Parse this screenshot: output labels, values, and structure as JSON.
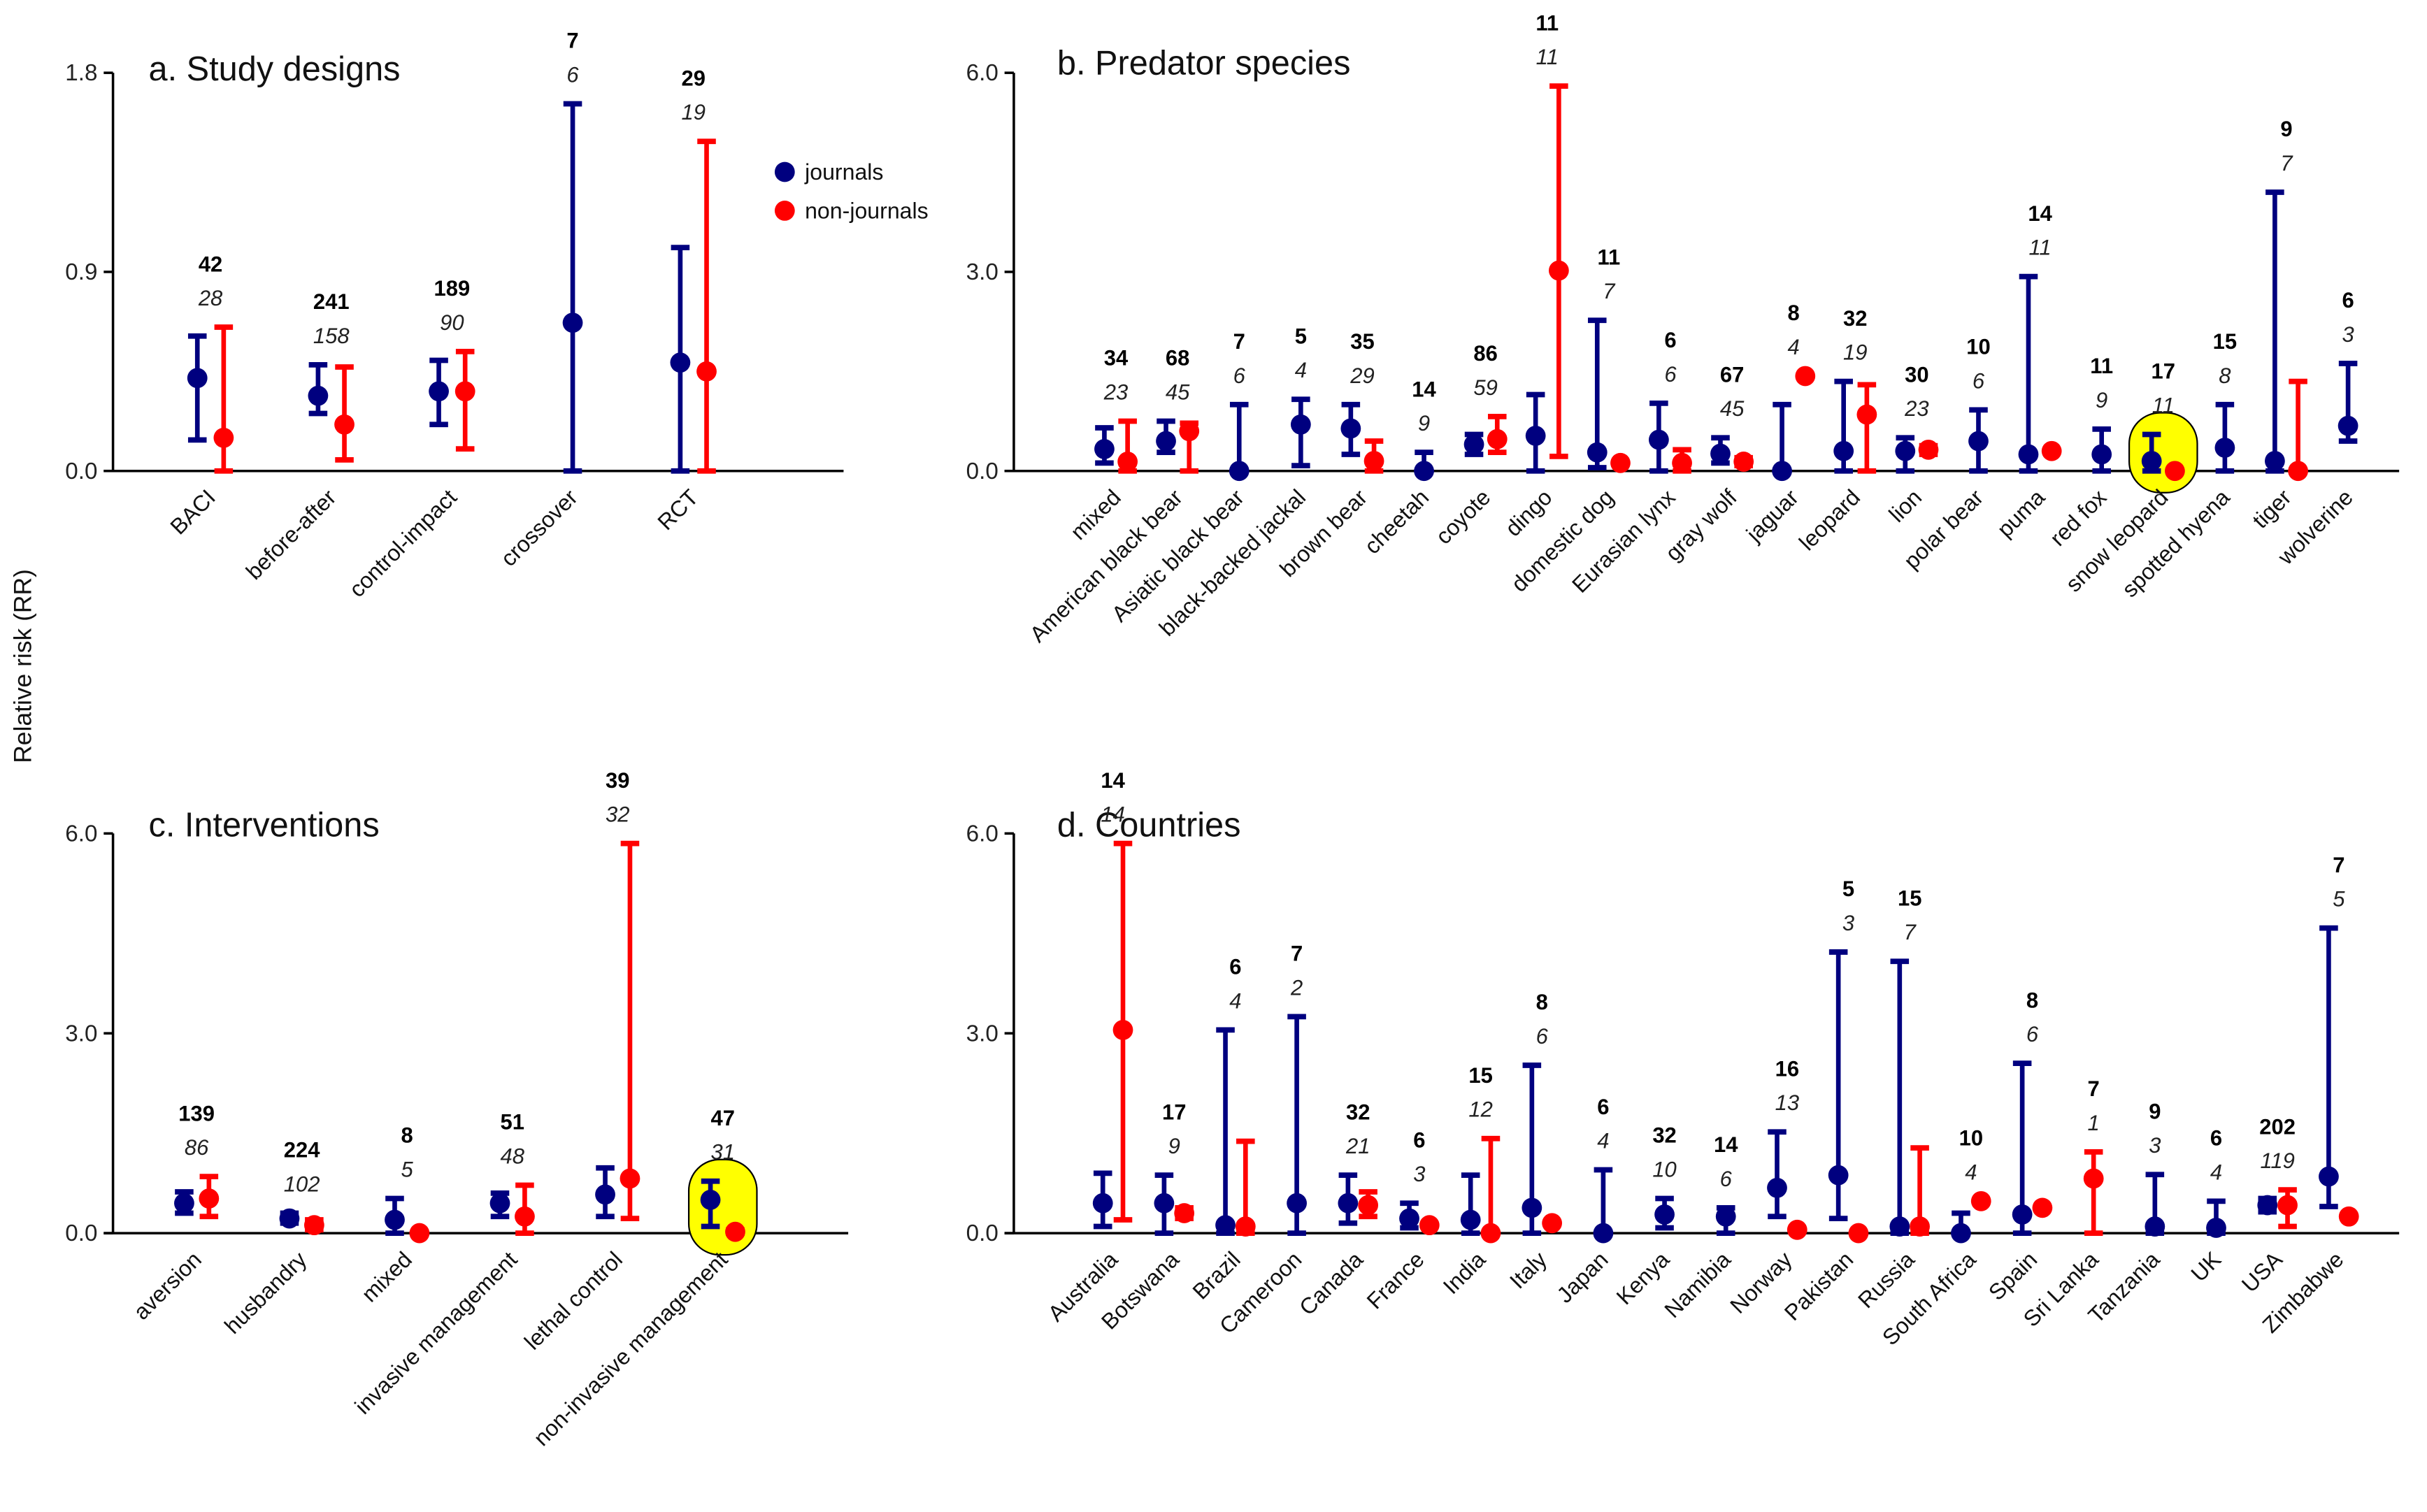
{
  "figure": {
    "y_axis_label": "Relative risk (RR)",
    "legend": [
      {
        "label": "journals",
        "color": "#00007f"
      },
      {
        "label": "non-journals",
        "color": "#ff0000"
      }
    ]
  },
  "chart_data": [
    {
      "id": "a",
      "type": "scatter",
      "subtype": "point-with-error-bars",
      "title": "a. Study designs",
      "xlabel": "",
      "ylabel": "Relative risk (RR)",
      "ylim": [
        0,
        1.8
      ],
      "yticks": [
        "0.0",
        "0.9",
        "1.8"
      ],
      "ytick_values": [
        0,
        0.9,
        1.8
      ],
      "legend_position": "right",
      "categories": [
        "BACI",
        "before-after",
        "control-impact",
        "crossover",
        "RCT"
      ],
      "n_total": [
        "42",
        "241",
        "189",
        "7",
        "29"
      ],
      "n_sub": [
        "28",
        "158",
        "90",
        "6",
        "19"
      ],
      "highlight": [],
      "series": [
        {
          "name": "journals",
          "color": "#00007f",
          "mean": [
            0.42,
            0.34,
            0.36,
            0.67,
            0.49
          ],
          "lower": [
            0.14,
            0.26,
            0.21,
            0.0,
            0.0
          ],
          "upper": [
            0.61,
            0.48,
            0.5,
            1.66,
            1.01
          ]
        },
        {
          "name": "non-journals",
          "color": "#ff0000",
          "mean": [
            0.15,
            0.21,
            0.36,
            null,
            0.45
          ],
          "lower": [
            0.0,
            0.05,
            0.1,
            null,
            0.0
          ],
          "upper": [
            0.65,
            0.47,
            0.54,
            null,
            1.49
          ]
        }
      ]
    },
    {
      "id": "b",
      "type": "scatter",
      "subtype": "point-with-error-bars",
      "title": "b. Predator species",
      "xlabel": "",
      "ylabel": "Relative risk (RR)",
      "ylim": [
        0,
        6.0
      ],
      "yticks": [
        "0.0",
        "3.0",
        "6.0"
      ],
      "ytick_values": [
        0,
        3,
        6
      ],
      "categories": [
        "mixed",
        "American black bear",
        "Asiatic black bear",
        "black-backed jackal",
        "brown bear",
        "cheetah",
        "coyote",
        "dingo",
        "domestic dog",
        "Eurasian lynx",
        "gray wolf",
        "jaguar",
        "leopard",
        "lion",
        "polar bear",
        "puma",
        "red fox",
        "snow leopard",
        "spotted hyena",
        "tiger",
        "wolverine"
      ],
      "n_total": [
        "34",
        "68",
        "7",
        "5",
        "35",
        "14",
        "86",
        "11",
        "11",
        "6",
        "67",
        "8",
        "32",
        "30",
        "10",
        "14",
        "11",
        "17",
        "15",
        "9",
        "6"
      ],
      "n_sub": [
        "23",
        "45",
        "6",
        "4",
        "29",
        "9",
        "59",
        "11",
        "7",
        "6",
        "45",
        "4",
        "19",
        "23",
        "6",
        "11",
        "9",
        "11",
        "8",
        "7",
        "3"
      ],
      "highlight": [
        "snow leopard"
      ],
      "series": [
        {
          "name": "journals",
          "color": "#00007f",
          "mean": [
            0.33,
            0.45,
            0.0,
            0.7,
            0.64,
            0.0,
            0.4,
            0.53,
            0.28,
            0.47,
            0.26,
            0.0,
            0.3,
            0.3,
            0.45,
            0.25,
            0.25,
            0.15,
            0.35,
            0.15,
            0.68
          ],
          "lower": [
            0.12,
            0.28,
            0.0,
            0.08,
            0.25,
            0.0,
            0.25,
            0.0,
            0.05,
            0.0,
            0.12,
            0.0,
            0.0,
            0.0,
            0.0,
            0.0,
            0.0,
            0.0,
            0.0,
            0.0,
            0.45
          ],
          "upper": [
            0.65,
            0.75,
            1.0,
            1.08,
            1.0,
            0.28,
            0.55,
            1.15,
            2.27,
            1.02,
            0.5,
            1.0,
            1.35,
            0.5,
            0.92,
            2.93,
            0.63,
            0.55,
            1.0,
            4.2,
            1.62
          ]
        },
        {
          "name": "non-journals",
          "color": "#ff0000",
          "mean": [
            0.14,
            0.6,
            null,
            null,
            0.15,
            null,
            0.48,
            3.02,
            0.12,
            0.12,
            0.14,
            1.43,
            0.85,
            0.32,
            null,
            0.3,
            null,
            0.0,
            null,
            0.0,
            null
          ],
          "lower": [
            0.0,
            0.0,
            null,
            null,
            0.0,
            null,
            0.28,
            0.22,
            null,
            0.0,
            0.08,
            null,
            0.0,
            0.25,
            null,
            null,
            null,
            null,
            null,
            0.0,
            null
          ],
          "upper": [
            0.75,
            0.72,
            null,
            null,
            0.45,
            null,
            0.82,
            5.8,
            null,
            0.32,
            0.2,
            null,
            1.3,
            0.38,
            null,
            null,
            null,
            null,
            null,
            1.35,
            null
          ]
        }
      ]
    },
    {
      "id": "c",
      "type": "scatter",
      "subtype": "point-with-error-bars",
      "title": "c. Interventions",
      "xlabel": "",
      "ylabel": "Relative risk (RR)",
      "ylim": [
        0,
        6.0
      ],
      "yticks": [
        "0.0",
        "3.0",
        "6.0"
      ],
      "ytick_values": [
        0,
        3,
        6
      ],
      "categories": [
        "aversion",
        "husbandry",
        "mixed",
        "invasive management",
        "lethal control",
        "non-invasive management"
      ],
      "n_total": [
        "139",
        "224",
        "8",
        "51",
        "39",
        "47"
      ],
      "n_sub": [
        "86",
        "102",
        "5",
        "48",
        "32",
        "31"
      ],
      "highlight": [
        "non-invasive management"
      ],
      "series": [
        {
          "name": "journals",
          "color": "#00007f",
          "mean": [
            0.45,
            0.22,
            0.2,
            0.45,
            0.58,
            0.5
          ],
          "lower": [
            0.3,
            0.15,
            0.0,
            0.25,
            0.25,
            0.1
          ],
          "upper": [
            0.62,
            0.3,
            0.52,
            0.6,
            0.98,
            0.78
          ]
        },
        {
          "name": "non-journals",
          "color": "#ff0000",
          "mean": [
            0.52,
            0.12,
            0.0,
            0.25,
            0.82,
            0.02
          ],
          "lower": [
            0.25,
            0.05,
            null,
            0.0,
            0.22,
            0.0
          ],
          "upper": [
            0.85,
            0.2,
            null,
            0.72,
            5.85,
            0.05
          ]
        }
      ]
    },
    {
      "id": "d",
      "type": "scatter",
      "subtype": "point-with-error-bars",
      "title": "d. Countries",
      "xlabel": "",
      "ylabel": "Relative risk (RR)",
      "ylim": [
        0,
        6.0
      ],
      "yticks": [
        "0.0",
        "3.0",
        "6.0"
      ],
      "ytick_values": [
        0,
        3,
        6
      ],
      "categories": [
        "Australia",
        "Botswana",
        "Brazil",
        "Cameroon",
        "Canada",
        "France",
        "India",
        "Italy",
        "Japan",
        "Kenya",
        "Namibia",
        "Norway",
        "Pakistan",
        "Russia",
        "South Africa",
        "Spain",
        "Sri Lanka",
        "Tanzania",
        "UK",
        "USA",
        "Zimbabwe"
      ],
      "n_total": [
        "14",
        "17",
        "6",
        "7",
        "32",
        "6",
        "15",
        "8",
        "6",
        "32",
        "14",
        "16",
        "5",
        "15",
        "10",
        "8",
        "7",
        "9",
        "6",
        "202",
        "7"
      ],
      "n_sub": [
        "14",
        "9",
        "4",
        "2",
        "21",
        "3",
        "12",
        "6",
        "4",
        "10",
        "6",
        "13",
        "3",
        "7",
        "4",
        "6",
        "1",
        "3",
        "4",
        "119",
        "5"
      ],
      "highlight": [],
      "series": [
        {
          "name": "journals",
          "color": "#00007f",
          "mean": [
            0.45,
            0.45,
            0.12,
            0.45,
            0.45,
            0.22,
            0.2,
            0.38,
            0.0,
            0.28,
            0.25,
            0.68,
            0.87,
            0.1,
            0.0,
            0.28,
            null,
            0.1,
            0.08,
            0.42,
            0.85
          ],
          "lower": [
            0.1,
            0.0,
            0.0,
            0.0,
            0.15,
            0.08,
            0.0,
            0.0,
            0.0,
            0.08,
            0.0,
            0.25,
            0.22,
            0.0,
            0.0,
            0.0,
            null,
            0.0,
            0.0,
            0.32,
            0.4
          ],
          "upper": [
            0.9,
            0.87,
            3.05,
            3.25,
            0.87,
            0.45,
            0.87,
            2.52,
            0.95,
            0.52,
            0.38,
            1.52,
            4.22,
            4.08,
            0.3,
            2.55,
            null,
            0.88,
            0.48,
            0.52,
            4.58
          ]
        },
        {
          "name": "non-journals",
          "color": "#ff0000",
          "mean": [
            3.05,
            0.3,
            0.1,
            null,
            0.42,
            0.12,
            0.0,
            0.15,
            null,
            null,
            null,
            0.05,
            0.0,
            0.1,
            0.48,
            0.38,
            0.82,
            null,
            null,
            0.42,
            0.25
          ],
          "lower": [
            0.2,
            0.22,
            0.0,
            null,
            0.25,
            null,
            0.0,
            null,
            null,
            null,
            null,
            null,
            null,
            0.0,
            null,
            null,
            0.0,
            null,
            null,
            0.1,
            null
          ],
          "upper": [
            5.85,
            0.38,
            1.38,
            null,
            0.62,
            null,
            1.42,
            null,
            null,
            null,
            null,
            null,
            null,
            1.28,
            null,
            null,
            1.22,
            null,
            null,
            0.65,
            null
          ]
        }
      ]
    }
  ]
}
